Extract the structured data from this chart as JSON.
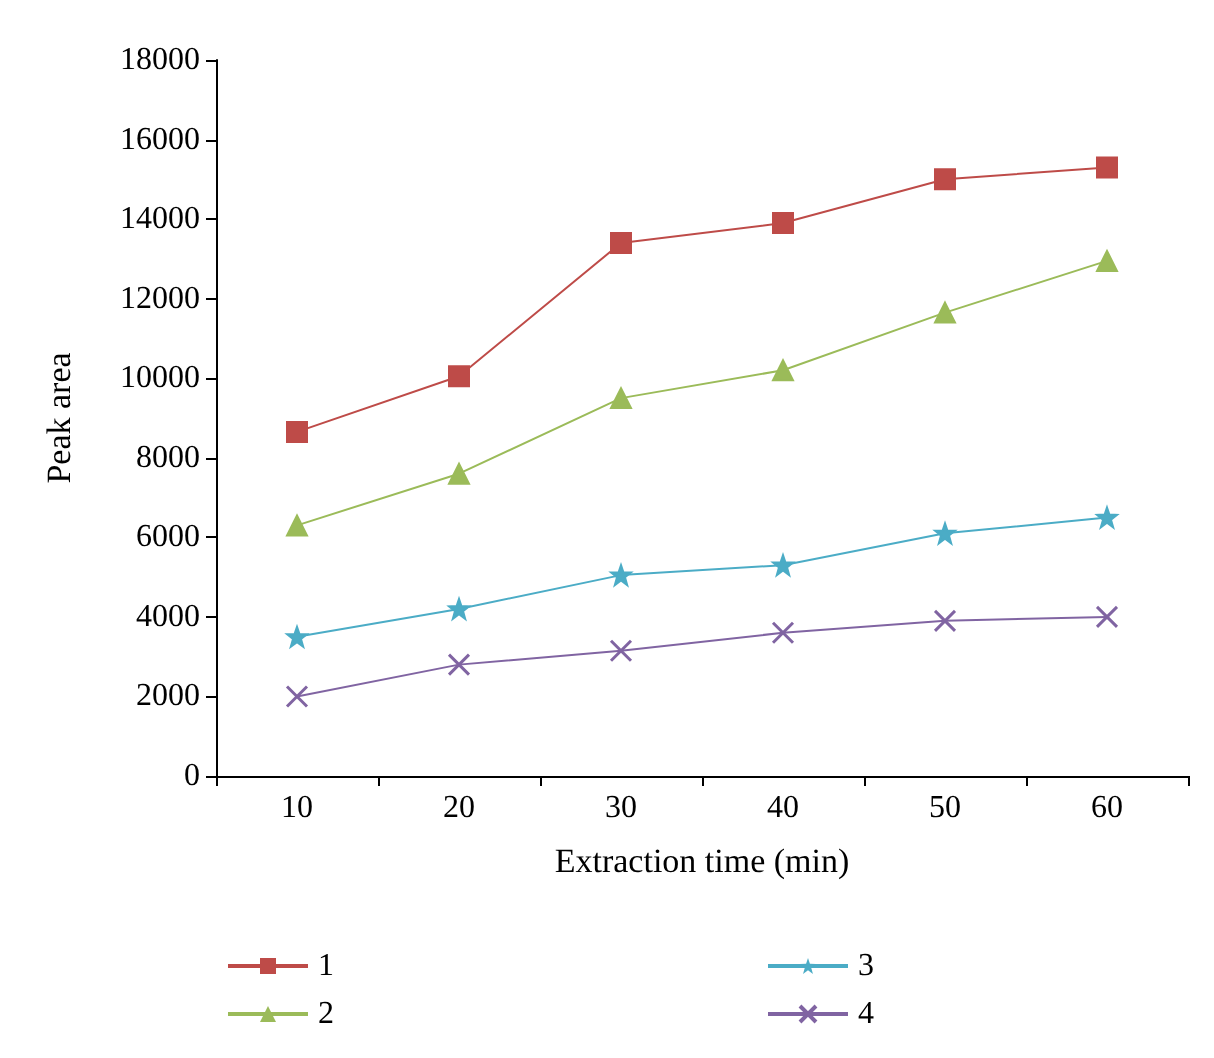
{
  "chart_data": {
    "type": "line",
    "xlabel": "Extraction time (min)",
    "ylabel": "Peak area",
    "categories": [
      "10",
      "20",
      "30",
      "40",
      "50",
      "60"
    ],
    "series": [
      {
        "name": "1",
        "color": "#be4b48",
        "marker": "square",
        "values": [
          8650,
          10050,
          13400,
          13900,
          15000,
          15300
        ]
      },
      {
        "name": "2",
        "color": "#9bbb59",
        "marker": "triangle",
        "values": [
          6300,
          7600,
          9500,
          10200,
          11650,
          12950
        ]
      },
      {
        "name": "3",
        "color": "#4bacc6",
        "marker": "star",
        "values": [
          3500,
          4200,
          5050,
          5300,
          6100,
          6500
        ]
      },
      {
        "name": "4",
        "color": "#8064a2",
        "marker": "cross",
        "values": [
          2000,
          2800,
          3150,
          3600,
          3900,
          4000
        ]
      }
    ],
    "ylim": [
      0,
      18000
    ],
    "yticks": [
      0,
      2000,
      4000,
      6000,
      8000,
      10000,
      12000,
      14000,
      16000,
      18000
    ],
    "grid": false,
    "legend": "bottom",
    "line_style": "solid"
  }
}
